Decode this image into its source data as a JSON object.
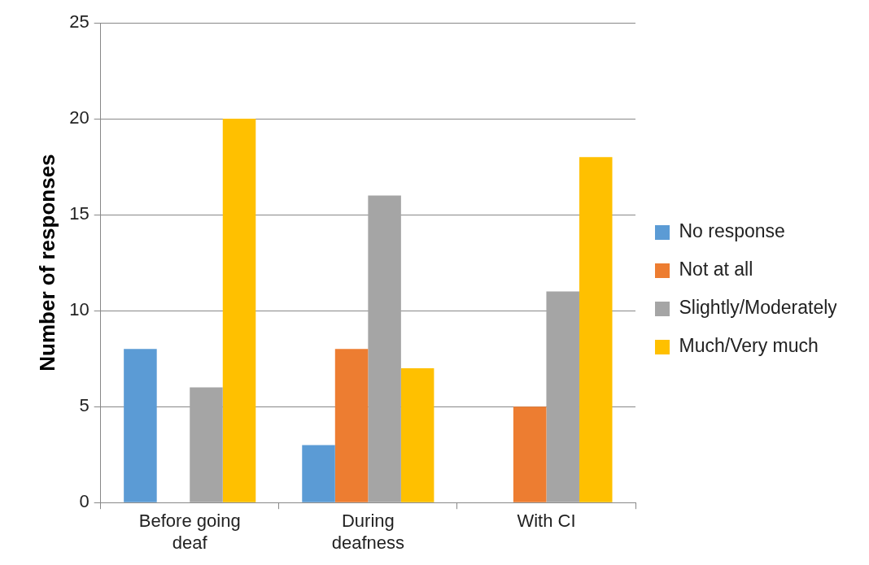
{
  "chart_data": {
    "type": "bar",
    "ylabel": "Number of responses",
    "categories": [
      "Before going deaf",
      "During deafness",
      "With CI"
    ],
    "series": [
      {
        "name": "No response",
        "color": "#5b9bd5",
        "values": [
          8,
          3,
          0
        ]
      },
      {
        "name": "Not at all",
        "color": "#ed7d31",
        "values": [
          0,
          8,
          5
        ]
      },
      {
        "name": "Slightly/Moderately",
        "color": "#a5a5a5",
        "values": [
          6,
          16,
          11
        ]
      },
      {
        "name": "Much/Very much",
        "color": "#ffc000",
        "values": [
          20,
          7,
          18
        ]
      }
    ],
    "ylim": [
      0,
      25
    ],
    "yticks": [
      0,
      5,
      10,
      15,
      20,
      25
    ],
    "grid": "y",
    "legend": "right"
  }
}
